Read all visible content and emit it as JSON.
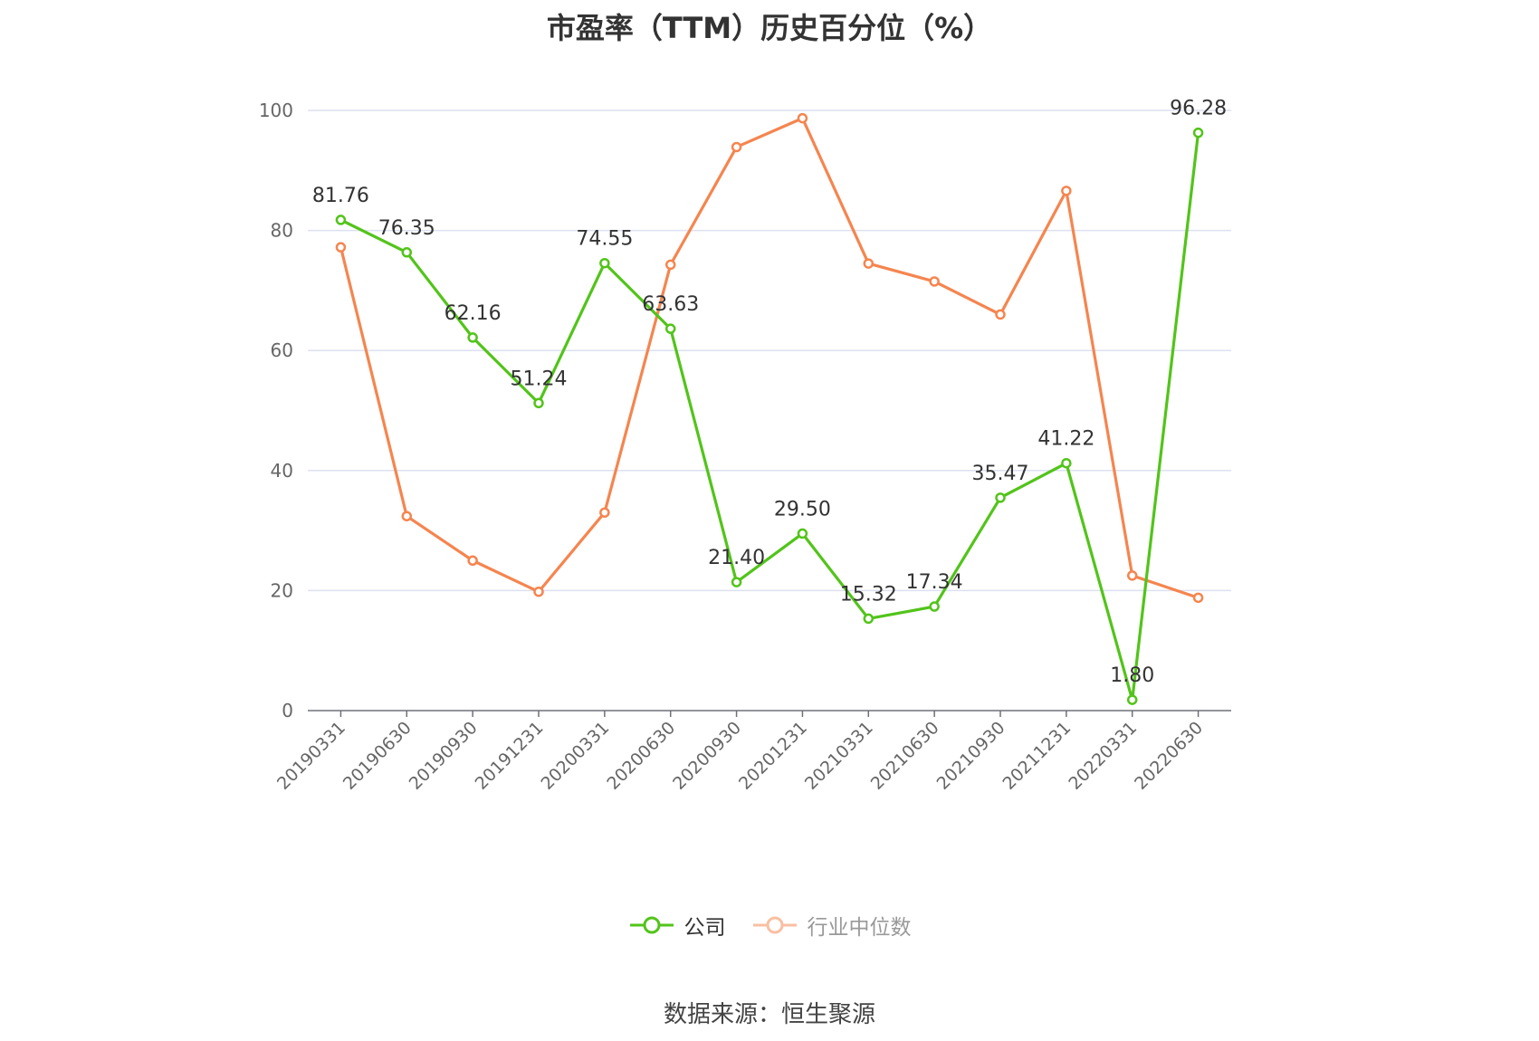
{
  "chart_data": {
    "type": "line",
    "title": "市盈率（TTM）历史百分位（%）",
    "categories": [
      "20190331",
      "20190630",
      "20190930",
      "20191231",
      "20200331",
      "20200630",
      "20200930",
      "20201231",
      "20210331",
      "20210630",
      "20210930",
      "20211231",
      "20220331",
      "20220630"
    ],
    "series": [
      {
        "name": "公司",
        "color": "#52c41a",
        "values": [
          81.76,
          76.35,
          62.16,
          51.24,
          74.55,
          63.63,
          21.4,
          29.5,
          15.32,
          17.34,
          35.47,
          41.22,
          1.8,
          96.28
        ],
        "labels": [
          "81.76",
          "76.35",
          "62.16",
          "51.24",
          "74.55",
          "63.63",
          "21.40",
          "29.50",
          "15.32",
          "17.34",
          "35.47",
          "41.22",
          "1.80",
          "96.28"
        ],
        "show_labels": true
      },
      {
        "name": "行业中位数",
        "color": "#f5854f",
        "values": [
          77.2,
          32.4,
          25.0,
          19.8,
          33.0,
          74.3,
          93.9,
          98.7,
          74.5,
          71.5,
          66.0,
          86.6,
          22.5,
          18.8
        ],
        "show_labels": false
      }
    ],
    "yticks": [
      "0",
      "20",
      "40",
      "60",
      "80",
      "100"
    ],
    "ylim": [
      0,
      100
    ],
    "grid": true,
    "legend_position": "bottom-center"
  },
  "legend": {
    "company": "公司",
    "industry": "行业中位数"
  },
  "source_note": "数据来源：恒生聚源"
}
